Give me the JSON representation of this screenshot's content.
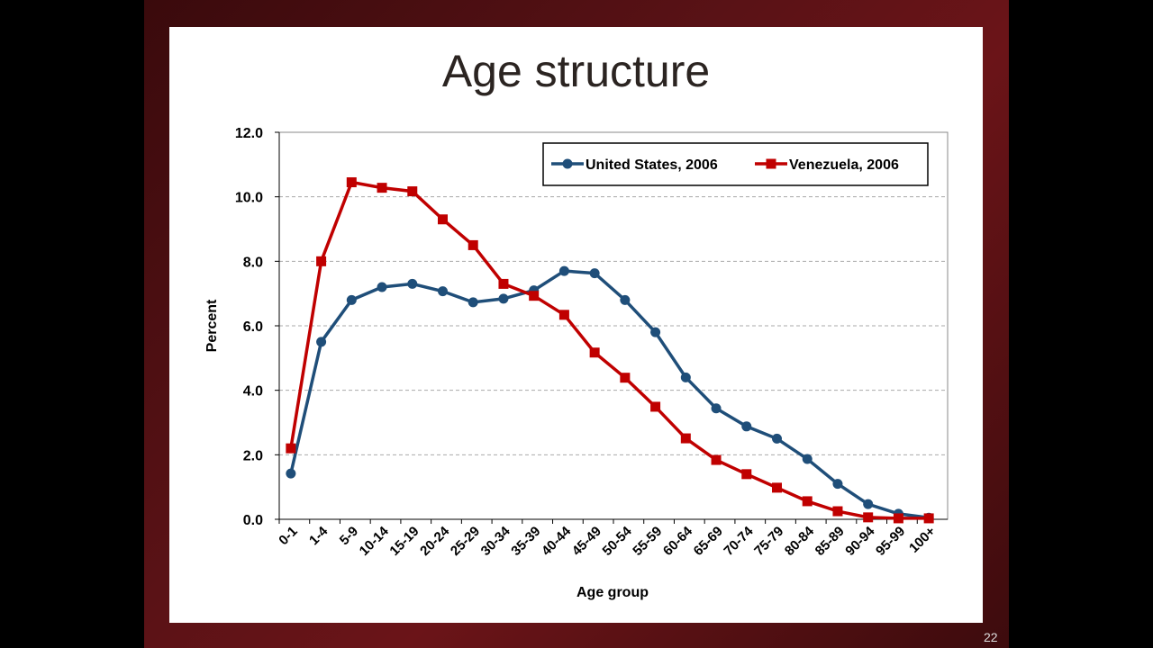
{
  "slide": {
    "title": "Age structure",
    "page_number": "22"
  },
  "chart_data": {
    "type": "line",
    "title": "Age structure",
    "xlabel": "Age group",
    "ylabel": "Percent",
    "ylim": [
      0,
      12
    ],
    "yticks": [
      "0.0",
      "2.0",
      "4.0",
      "6.0",
      "8.0",
      "10.0",
      "12.0"
    ],
    "grid": true,
    "legend_position": "top-right",
    "categories": [
      "0-1",
      "1-4",
      "5-9",
      "10-14",
      "15-19",
      "20-24",
      "25-29",
      "30-34",
      "35-39",
      "40-44",
      "45-49",
      "50-54",
      "55-59",
      "60-64",
      "65-69",
      "70-74",
      "75-79",
      "80-84",
      "85-89",
      "90-94",
      "95-99",
      "100+"
    ],
    "series": [
      {
        "name": "United States, 2006",
        "color": "#1f4e79",
        "marker": "circle",
        "values": [
          1.42,
          5.5,
          6.8,
          7.2,
          7.3,
          7.07,
          6.73,
          6.84,
          7.1,
          7.7,
          7.63,
          6.8,
          5.8,
          4.4,
          3.44,
          2.88,
          2.5,
          1.87,
          1.1,
          0.47,
          0.17,
          0.05
        ]
      },
      {
        "name": "Venezuela, 2006",
        "color": "#c00000",
        "marker": "square",
        "values": [
          2.2,
          8.0,
          10.45,
          10.28,
          10.17,
          9.3,
          8.5,
          7.3,
          6.93,
          6.34,
          5.17,
          4.39,
          3.49,
          2.51,
          1.84,
          1.4,
          0.98,
          0.56,
          0.25,
          0.06,
          0.03,
          0.03
        ]
      }
    ]
  }
}
